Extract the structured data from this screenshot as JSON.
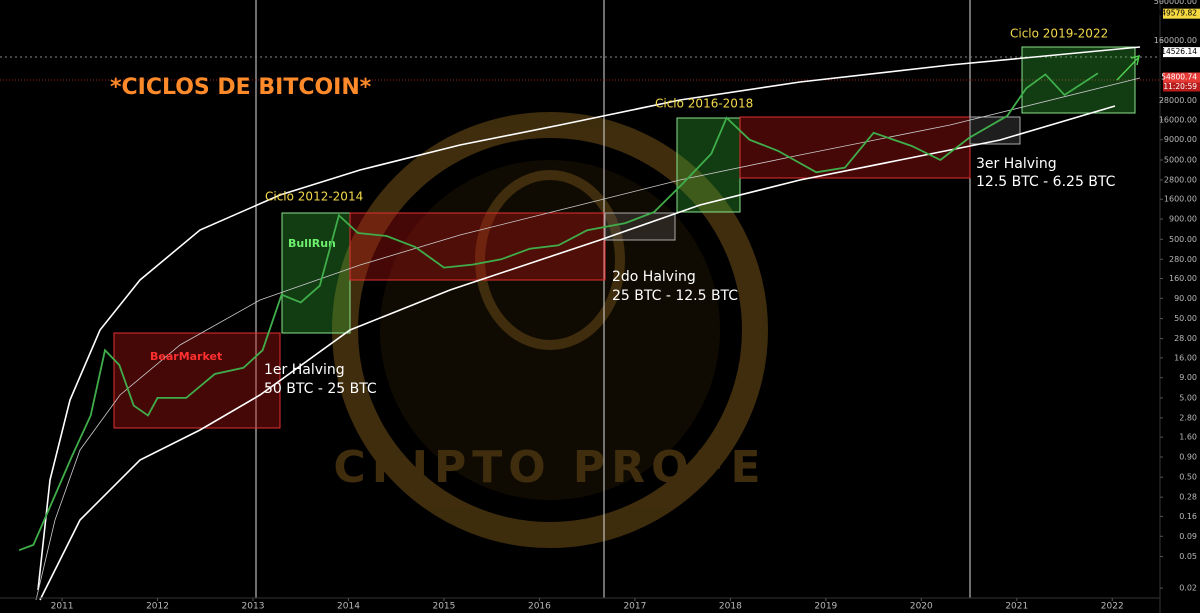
{
  "chart_data": {
    "type": "line",
    "title": "*CICLOS DE BITCOIN*",
    "watermark": "CRIPTO PROFE",
    "annotations": {
      "bear": "BearMarket",
      "bull": "BullRun",
      "cycle1": "Ciclo 2012-2014",
      "cycle2": "Ciclo 2016-2018",
      "cycle3": "Ciclo 2019-2022",
      "halving1": "1er Halving",
      "reward1": "50 BTC - 25 BTC",
      "halving2": "2do Halving",
      "reward2": "25 BTC - 12.5 BTC",
      "halving3": "3er Halving",
      "reward3": "12.5 BTC - 6.25 BTC"
    },
    "log_scale": true,
    "x": [
      2010.55,
      2010.7,
      2010.9,
      2011.1,
      2011.3,
      2011.45,
      2011.6,
      2011.75,
      2011.9,
      2012.0,
      2012.3,
      2012.6,
      2012.9,
      2013.1,
      2013.3,
      2013.5,
      2013.7,
      2013.9,
      2014.1,
      2014.4,
      2014.7,
      2015.0,
      2015.3,
      2015.6,
      2015.9,
      2016.2,
      2016.5,
      2016.9,
      2017.2,
      2017.5,
      2017.8,
      2017.96,
      2018.2,
      2018.5,
      2018.9,
      2019.2,
      2019.5,
      2019.9,
      2020.2,
      2020.5,
      2020.9,
      2021.1,
      2021.3,
      2021.5,
      2021.85
    ],
    "series": [
      {
        "color": "#3fae4a",
        "values": [
          0.06,
          0.07,
          0.25,
          0.9,
          3,
          20,
          13,
          4,
          3,
          5,
          5,
          10,
          12,
          20,
          100,
          80,
          130,
          1000,
          600,
          550,
          400,
          220,
          240,
          280,
          380,
          420,
          650,
          800,
          1100,
          2500,
          6000,
          17000,
          9000,
          6500,
          3500,
          4000,
          11000,
          7500,
          5000,
          9500,
          18000,
          40000,
          60000,
          33000,
          62000
        ]
      }
    ],
    "xlim": [
      2010.35,
      2022.5
    ],
    "ylim": [
      0.015,
      520000
    ],
    "xticks": [
      2011,
      2012,
      2013,
      2014,
      2015,
      2016,
      2017,
      2018,
      2019,
      2020,
      2021,
      2022
    ],
    "yticks": [
      {
        "value": 500000,
        "label": "500000.00"
      },
      {
        "value": 160000,
        "label": "160000.00"
      },
      {
        "value": 28000,
        "label": "28000.00"
      },
      {
        "value": 16000,
        "label": "16000.00"
      },
      {
        "value": 9000,
        "label": "9000.00"
      },
      {
        "value": 5000,
        "label": "5000.00"
      },
      {
        "value": 2800,
        "label": "2800.00"
      },
      {
        "value": 1600,
        "label": "1600.00"
      },
      {
        "value": 900,
        "label": "900.00"
      },
      {
        "value": 500,
        "label": "500.00"
      },
      {
        "value": 280,
        "label": "280.00"
      },
      {
        "value": 160,
        "label": "160.00"
      },
      {
        "value": 90,
        "label": "90.00"
      },
      {
        "value": 50,
        "label": "50.00"
      },
      {
        "value": 28,
        "label": "28.00"
      },
      {
        "value": 16,
        "label": "16.00"
      },
      {
        "value": 9,
        "label": "9.00"
      },
      {
        "value": 5,
        "label": "5.00"
      },
      {
        "value": 2.8,
        "label": "2.80"
      },
      {
        "value": 1.6,
        "label": "1.60"
      },
      {
        "value": 0.9,
        "label": "0.90"
      },
      {
        "value": 0.5,
        "label": "0.50"
      },
      0.28,
      0.16,
      0.09,
      0.05,
      0.02
    ],
    "price_labels": [
      349579.82,
      114526.14,
      54800.74
    ],
    "countdown": "11:20:59"
  }
}
